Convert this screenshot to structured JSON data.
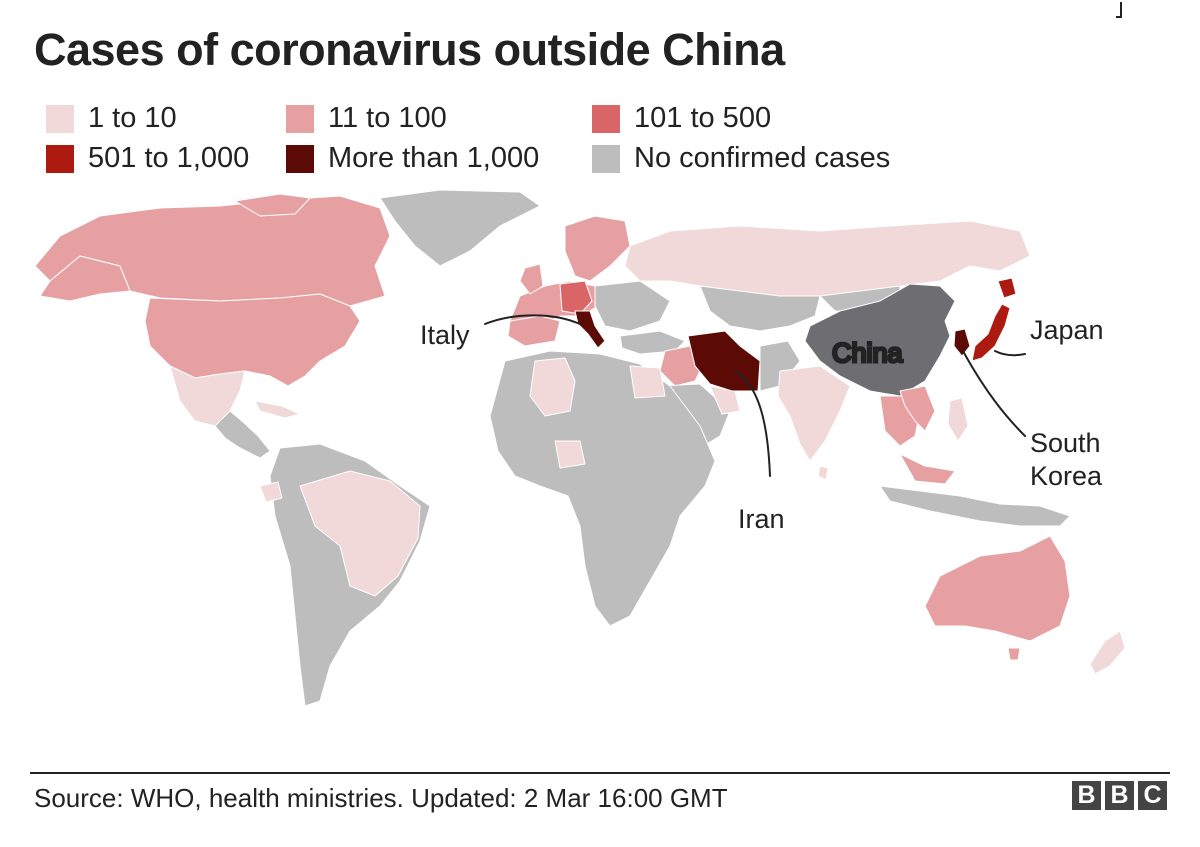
{
  "title": "Cases of coronavirus outside China",
  "legend": [
    {
      "label": "1 to 10",
      "color": "#f1d8d9"
    },
    {
      "label": "11 to 100",
      "color": "#e7a0a2"
    },
    {
      "label": "101 to 500",
      "color": "#d96567"
    },
    {
      "label": "501 to 1,000",
      "color": "#ac1a10"
    },
    {
      "label": "More than 1,000",
      "color": "#5c0a05"
    },
    {
      "label": "No confirmed cases",
      "color": "#bdbdbd"
    }
  ],
  "map": {
    "china_label": "China",
    "china_color": "#6e6e72",
    "country_labels": {
      "italy": "Italy",
      "iran": "Iran",
      "japan": "Japan",
      "south_korea_line1": "South",
      "south_korea_line2": "Korea"
    }
  },
  "source": "Source: WHO, health ministries. Updated: 2 Mar 16:00 GMT",
  "brand": [
    "B",
    "B",
    "C"
  ]
}
